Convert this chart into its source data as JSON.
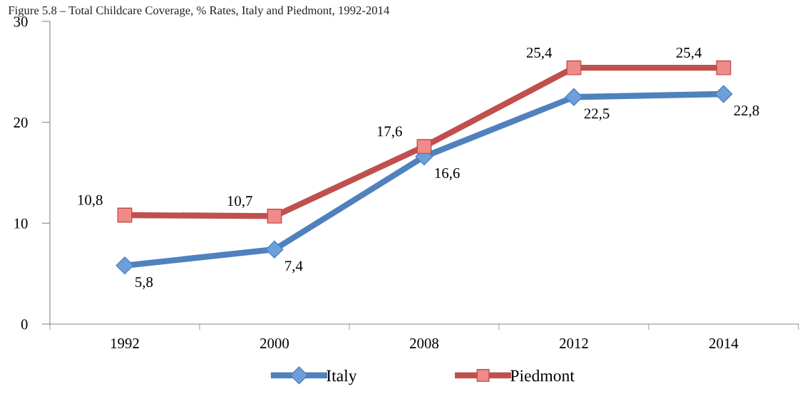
{
  "chart_data": {
    "type": "line",
    "title": "Figure 5.8 – Total Childcare Coverage, % Rates, Italy and Piedmont, 1992-2014",
    "categories": [
      "1992",
      "2000",
      "2008",
      "2012",
      "2014"
    ],
    "series": [
      {
        "name": "Italy",
        "color": "#4f81bd",
        "marker": "diamond",
        "values": [
          5.8,
          7.4,
          16.6,
          22.5,
          22.8
        ],
        "value_labels": [
          "5,8",
          "7,4",
          "16,6",
          "22,5",
          "22,8"
        ]
      },
      {
        "name": "Piedmont",
        "color": "#c0504d",
        "marker": "square",
        "values": [
          10.8,
          10.7,
          17.6,
          25.4,
          25.4
        ],
        "value_labels": [
          "10,8",
          "10,7",
          "17,6",
          "25,4",
          "25,4"
        ]
      }
    ],
    "ylim": [
      0,
      30
    ],
    "yticks": [
      0,
      10,
      20,
      30
    ],
    "grid": false,
    "legend": "bottom",
    "line_style": "solid"
  }
}
